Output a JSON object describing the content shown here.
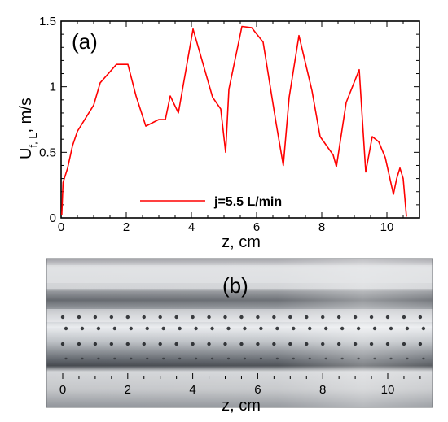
{
  "chart_data": [
    {
      "panel": "(a)",
      "type": "line",
      "xlabel": "z, cm",
      "ylabel_main": "U",
      "ylabel_sub": "f, L",
      "ylabel_unit": ", m/s",
      "xlim": [
        0,
        11
      ],
      "ylim": [
        0,
        1.5
      ],
      "x_ticks": [
        0,
        2,
        4,
        6,
        8,
        10
      ],
      "x_tick_labels": [
        "0",
        "2",
        "4",
        "6",
        "8",
        "10"
      ],
      "y_ticks": [
        0,
        0.5,
        1,
        1.5
      ],
      "y_tick_labels": [
        "0",
        "0.5",
        "1",
        "1.5"
      ],
      "legend_placement": "bottom-center",
      "series": [
        {
          "name": "j=5.5 L/min",
          "color": "#ff0000",
          "x": [
            0.02,
            0.06,
            0.2,
            0.35,
            0.5,
            0.8,
            1.0,
            1.2,
            1.7,
            2.05,
            2.3,
            2.6,
            3.0,
            3.2,
            3.35,
            3.6,
            4.05,
            4.35,
            4.65,
            4.9,
            5.05,
            5.15,
            5.55,
            5.85,
            6.2,
            6.6,
            6.82,
            7.0,
            7.3,
            7.7,
            7.95,
            8.35,
            8.45,
            8.75,
            9.15,
            9.35,
            9.55,
            9.75,
            9.95,
            10.2,
            10.3,
            10.4,
            10.5,
            10.6
          ],
          "y": [
            0.02,
            0.27,
            0.38,
            0.55,
            0.66,
            0.78,
            0.86,
            1.03,
            1.17,
            1.17,
            0.93,
            0.7,
            0.75,
            0.75,
            0.93,
            0.8,
            1.44,
            1.18,
            0.92,
            0.83,
            0.5,
            0.98,
            1.46,
            1.45,
            1.34,
            0.72,
            0.4,
            0.92,
            1.39,
            0.97,
            0.62,
            0.48,
            0.39,
            0.88,
            1.13,
            0.35,
            0.62,
            0.58,
            0.46,
            0.18,
            0.3,
            0.38,
            0.3,
            0.01
          ]
        }
      ]
    },
    {
      "panel": "(b)",
      "type": "other",
      "xlabel": "z, cm",
      "x_tick_labels": [
        "0",
        "2",
        "4",
        "6",
        "8",
        "10"
      ]
    }
  ]
}
